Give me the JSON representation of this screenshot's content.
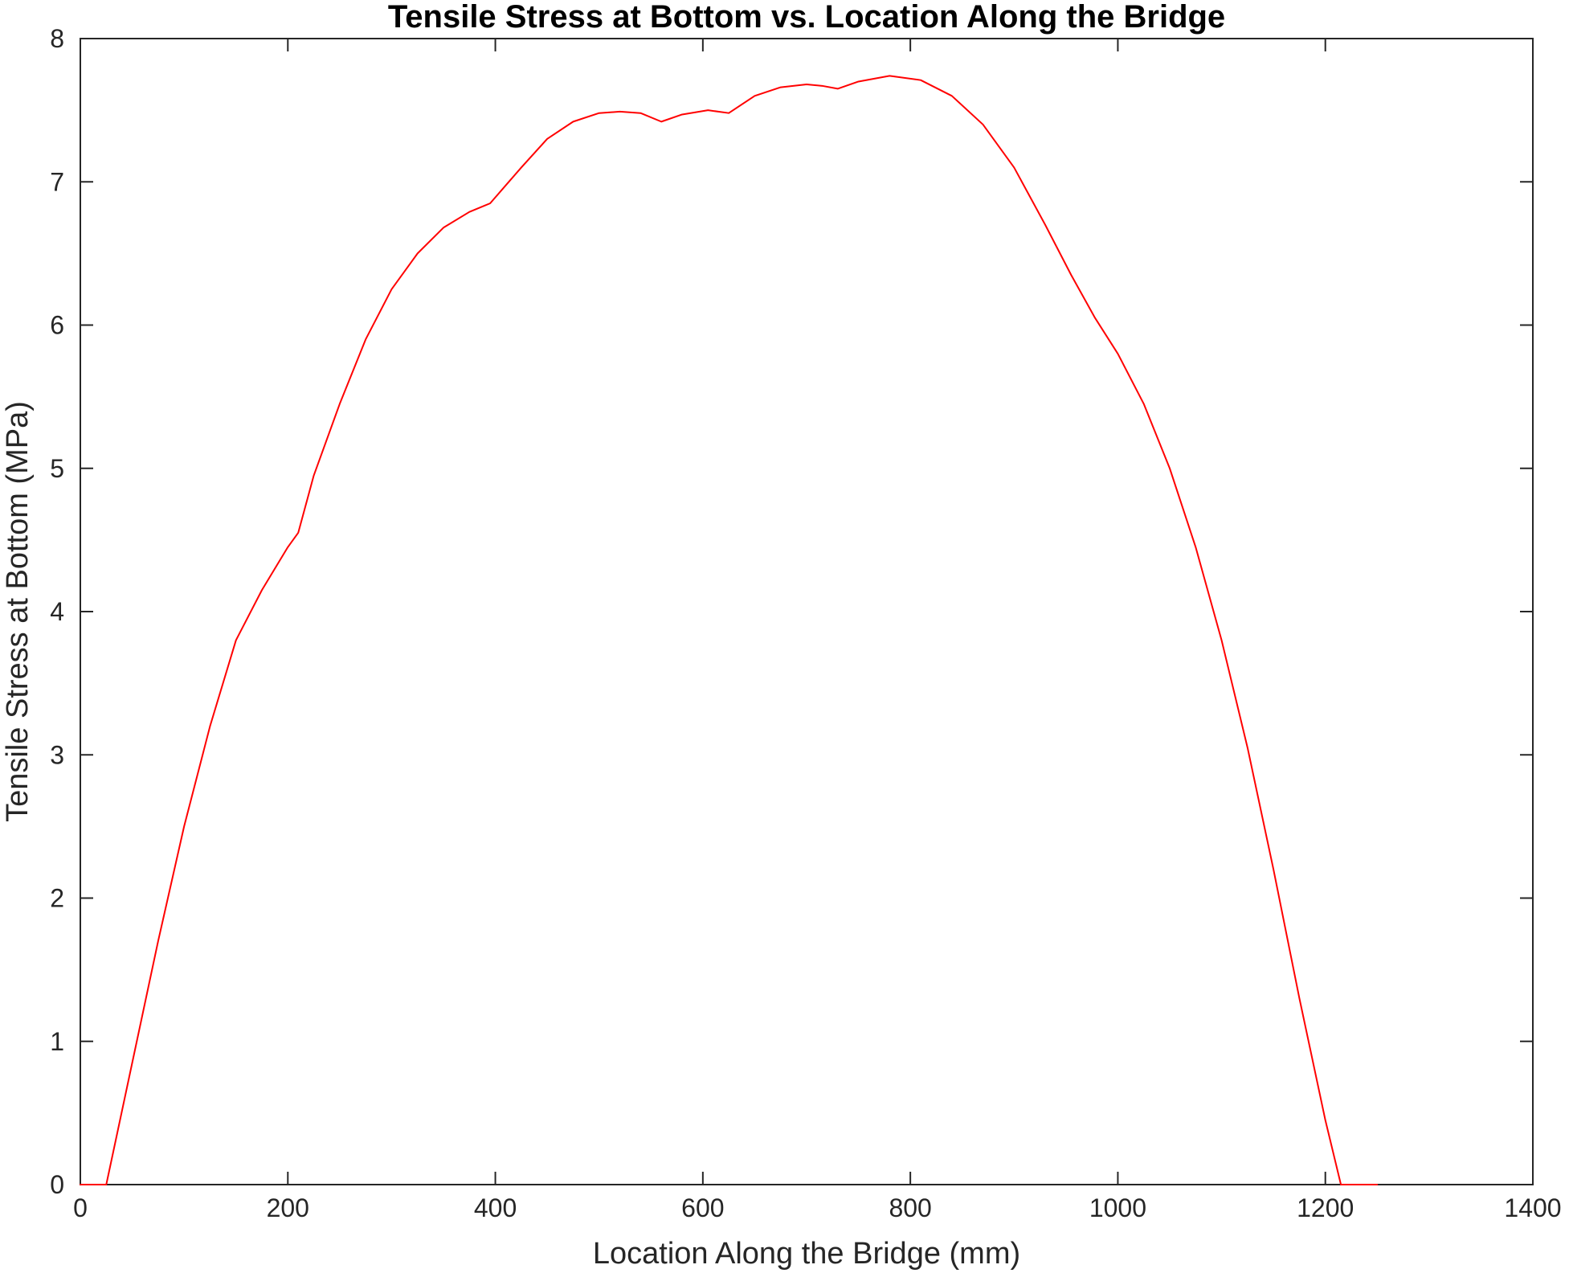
{
  "chart_data": {
    "type": "line",
    "title": "Tensile Stress at Bottom vs. Location Along the Bridge",
    "xlabel": "Location Along the Bridge (mm)",
    "ylabel": "Tensile Stress at Bottom (MPa)",
    "xlim": [
      0,
      1400
    ],
    "ylim": [
      0,
      8
    ],
    "xticks": [
      0,
      200,
      400,
      600,
      800,
      1000,
      1200,
      1400
    ],
    "yticks": [
      0,
      1,
      2,
      3,
      4,
      5,
      6,
      7,
      8
    ],
    "grid": false,
    "legend": "none",
    "series": [
      {
        "color": "#ff0000",
        "x": [
          0,
          25,
          50,
          75,
          100,
          125,
          150,
          175,
          200,
          210,
          225,
          250,
          275,
          300,
          325,
          350,
          375,
          395,
          425,
          450,
          475,
          500,
          520,
          540,
          560,
          580,
          605,
          625,
          650,
          675,
          700,
          715,
          730,
          750,
          780,
          810,
          840,
          870,
          900,
          930,
          955,
          978,
          1000,
          1025,
          1050,
          1075,
          1100,
          1125,
          1150,
          1175,
          1200,
          1215,
          1230,
          1250
        ],
        "y": [
          0,
          0,
          0.85,
          1.7,
          2.5,
          3.2,
          3.8,
          4.15,
          4.45,
          4.55,
          4.95,
          5.45,
          5.9,
          6.25,
          6.5,
          6.68,
          6.79,
          6.85,
          7.1,
          7.3,
          7.42,
          7.48,
          7.49,
          7.48,
          7.42,
          7.47,
          7.5,
          7.48,
          7.6,
          7.66,
          7.68,
          7.67,
          7.65,
          7.7,
          7.74,
          7.71,
          7.6,
          7.4,
          7.1,
          6.7,
          6.35,
          6.05,
          5.8,
          5.45,
          5.0,
          4.45,
          3.8,
          3.05,
          2.2,
          1.3,
          0.45,
          0.0,
          0.0,
          0.0
        ]
      }
    ]
  }
}
